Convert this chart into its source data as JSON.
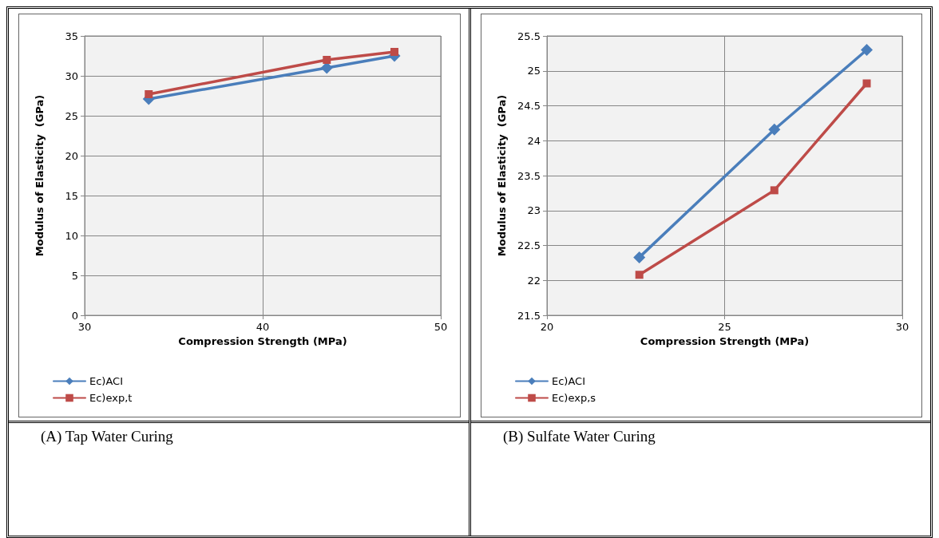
{
  "chart_data": [
    {
      "type": "line",
      "title": "(A) Tap Water Curing",
      "xlabel": "Compression Strength (MPa)",
      "ylabel": "Modulus of Elasticity  (GPa)",
      "x": [
        33.6,
        43.6,
        47.4
      ],
      "series": [
        {
          "name": "Ec)ACI",
          "color": "#4a7ebb",
          "marker": "diamond",
          "values": [
            27.1,
            31.0,
            32.5
          ]
        },
        {
          "name": "Ec)exp,t",
          "color": "#be4b48",
          "marker": "square",
          "values": [
            27.7,
            32.0,
            33.0
          ]
        }
      ],
      "xlim": [
        30,
        50
      ],
      "xticks": [
        30,
        40,
        50
      ],
      "ylim": [
        0,
        35
      ],
      "yticks": [
        0,
        5,
        10,
        15,
        20,
        25,
        30,
        35
      ],
      "grid": true,
      "legend": "bottom left"
    },
    {
      "type": "line",
      "title": "(B) Sulfate Water Curing",
      "xlabel": "Compression Strength (MPa)",
      "ylabel": "Modulus of Elasticity  (GPa)",
      "x": [
        22.6,
        26.4,
        29.0
      ],
      "series": [
        {
          "name": "Ec)ACI",
          "color": "#4a7ebb",
          "marker": "diamond",
          "values": [
            22.33,
            24.16,
            25.3
          ]
        },
        {
          "name": "Ec)exp,s",
          "color": "#be4b48",
          "marker": "square",
          "values": [
            22.08,
            23.29,
            24.82
          ]
        }
      ],
      "xlim": [
        20,
        30
      ],
      "xticks": [
        20,
        25,
        30
      ],
      "ylim": [
        21.5,
        25.5
      ],
      "yticks": [
        21.5,
        22,
        22.5,
        23,
        23.5,
        24,
        24.5,
        25,
        25.5
      ],
      "grid": true,
      "legend": "bottom left"
    }
  ]
}
